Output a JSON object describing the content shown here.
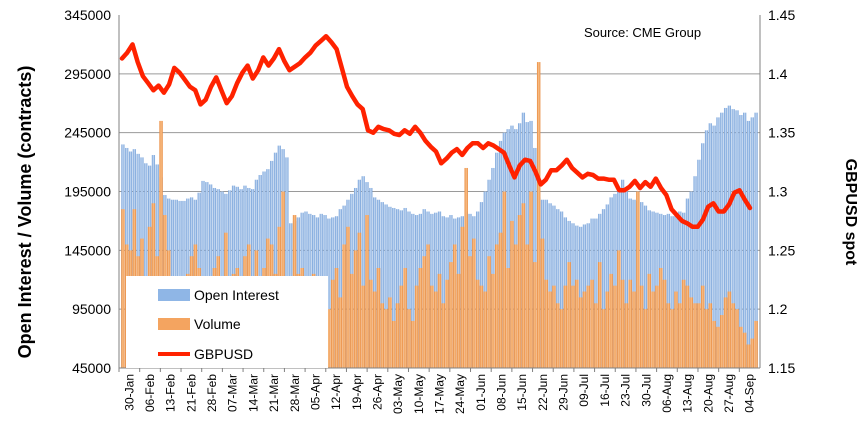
{
  "chart_data": {
    "type": "bar",
    "source_note": "Source: CME Group",
    "y_left_label": "Open Interest / Volume (contracts)",
    "y_right_label": "GBPUSD spot",
    "y_left_ticks": [
      "345000",
      "295000",
      "245000",
      "195000",
      "145000",
      "95000",
      "45000"
    ],
    "y_right_ticks": [
      "1.45",
      "1.4",
      "1.35",
      "1.3",
      "1.25",
      "1.2",
      "1.15"
    ],
    "ylim_left": [
      45000,
      345000
    ],
    "ylim_right": [
      1.15,
      1.45
    ],
    "x_labels": [
      "30-Jan",
      "06-Feb",
      "13-Feb",
      "21-Feb",
      "28-Feb",
      "07-Mar",
      "14-Mar",
      "21-Mar",
      "28-Mar",
      "05-Apr",
      "12-Apr",
      "19-Apr",
      "26-Apr",
      "03-May",
      "10-May",
      "17-May",
      "24-May",
      "01-Jun",
      "08-Jun",
      "15-Jun",
      "22-Jun",
      "29-Jun",
      "09-Jul",
      "16-Jul",
      "23-Jul",
      "30-Jul",
      "06-Aug",
      "13-Aug",
      "20-Aug",
      "27-Aug",
      "04-Sep"
    ],
    "legend": [
      {
        "name": "Open Interest",
        "color": "#8fb6e6"
      },
      {
        "name": "Volume",
        "color": "#f4a460"
      },
      {
        "name": "GBPUSD",
        "color": "#ff2200"
      }
    ],
    "series": [
      {
        "name": "Open Interest",
        "axis": "left",
        "color": "#8fb6e6",
        "values": [
          235000,
          232000,
          229000,
          231000,
          227000,
          224000,
          219000,
          217000,
          226000,
          218000,
          207000,
          192000,
          189000,
          188000,
          188000,
          187000,
          187000,
          189000,
          190000,
          188000,
          194000,
          204000,
          203000,
          201000,
          198000,
          197000,
          195000,
          193000,
          196000,
          200000,
          199000,
          197000,
          200000,
          198000,
          197000,
          205000,
          209000,
          212000,
          214000,
          221000,
          228000,
          234000,
          231000,
          224000,
          168000,
          170000,
          173000,
          177000,
          178000,
          176000,
          175000,
          173000,
          176000,
          175000,
          172000,
          173000,
          174000,
          180000,
          183000,
          188000,
          193000,
          198000,
          205000,
          208000,
          203000,
          198000,
          190000,
          188000,
          186000,
          184000,
          182000,
          181000,
          180000,
          179000,
          181000,
          178000,
          176000,
          175000,
          176000,
          180000,
          178000,
          176000,
          177000,
          178000,
          174000,
          173000,
          175000,
          172000,
          173000,
          174000,
          178000,
          176000,
          174000,
          178000,
          186000,
          195000,
          205000,
          215000,
          228000,
          238000,
          245000,
          248000,
          251000,
          248000,
          253000,
          262000,
          254000,
          255000,
          232000,
          190000,
          188000,
          188000,
          185000,
          183000,
          180000,
          178000,
          173000,
          170000,
          168000,
          166000,
          165000,
          167000,
          168000,
          172000,
          172000,
          176000,
          180000,
          184000,
          190000,
          193000,
          198000,
          205000,
          195000,
          189000,
          188000,
          187000,
          186000,
          183000,
          179000,
          178000,
          177000,
          176000,
          175000,
          176000,
          174000,
          175000,
          178000,
          177000,
          189000,
          195000,
          208000,
          222000,
          236000,
          247000,
          253000,
          251000,
          258000,
          262000,
          266000,
          268000,
          265000,
          264000,
          260000,
          262000,
          255000,
          258000,
          262000
        ]
      },
      {
        "name": "Volume",
        "axis": "left",
        "color": "#f4a460",
        "values": [
          180000,
          150000,
          145000,
          180000,
          140000,
          155000,
          115000,
          165000,
          185000,
          140000,
          255000,
          175000,
          145000,
          120000,
          95000,
          110000,
          105000,
          125000,
          140000,
          150000,
          130000,
          115000,
          100000,
          95000,
          130000,
          140000,
          110000,
          160000,
          105000,
          125000,
          130000,
          110000,
          140000,
          150000,
          120000,
          145000,
          110000,
          130000,
          155000,
          150000,
          125000,
          165000,
          195000,
          120000,
          95000,
          175000,
          125000,
          130000,
          115000,
          120000,
          125000,
          110000,
          115000,
          100000,
          95000,
          120000,
          130000,
          105000,
          150000,
          165000,
          125000,
          145000,
          160000,
          115000,
          175000,
          120000,
          110000,
          130000,
          100000,
          95000,
          105000,
          85000,
          100000,
          115000,
          130000,
          95000,
          85000,
          115000,
          130000,
          140000,
          150000,
          115000,
          110000,
          125000,
          100000,
          120000,
          135000,
          150000,
          125000,
          165000,
          215000,
          140000,
          155000,
          120000,
          115000,
          110000,
          140000,
          125000,
          150000,
          160000,
          195000,
          130000,
          170000,
          150000,
          175000,
          185000,
          150000,
          195000,
          135000,
          305000,
          155000,
          120000,
          110000,
          115000,
          100000,
          95000,
          115000,
          135000,
          115000,
          120000,
          105000,
          110000,
          115000,
          120000,
          100000,
          135000,
          95000,
          110000,
          125000,
          115000,
          145000,
          120000,
          100000,
          120000,
          110000,
          195000,
          115000,
          95000,
          125000,
          110000,
          115000,
          130000,
          120000,
          100000,
          95000,
          110000,
          100000,
          120000,
          115000,
          105000,
          100000,
          100000,
          115000,
          95000,
          100000,
          85000,
          80000,
          90000,
          105000,
          110000,
          100000,
          95000,
          80000,
          75000,
          65000,
          70000,
          85000,
          105000,
          115000,
          175000
        ]
      },
      {
        "name": "GBPUSD",
        "axis": "right",
        "color": "#ff2200",
        "values": [
          1.413,
          1.418,
          1.425,
          1.41,
          1.398,
          1.392,
          1.386,
          1.39,
          1.384,
          1.391,
          1.405,
          1.401,
          1.395,
          1.389,
          1.386,
          1.374,
          1.378,
          1.389,
          1.397,
          1.386,
          1.375,
          1.381,
          1.392,
          1.401,
          1.407,
          1.396,
          1.403,
          1.414,
          1.407,
          1.413,
          1.421,
          1.411,
          1.403,
          1.406,
          1.409,
          1.414,
          1.418,
          1.424,
          1.428,
          1.432,
          1.427,
          1.421,
          1.405,
          1.389,
          1.381,
          1.374,
          1.37,
          1.352,
          1.35,
          1.355,
          1.353,
          1.352,
          1.349,
          1.348,
          1.352,
          1.349,
          1.355,
          1.35,
          1.343,
          1.338,
          1.334,
          1.324,
          1.328,
          1.333,
          1.336,
          1.331,
          1.337,
          1.341,
          1.341,
          1.337,
          1.341,
          1.339,
          1.336,
          1.333,
          1.322,
          1.312,
          1.322,
          1.327,
          1.326,
          1.317,
          1.306,
          1.31,
          1.318,
          1.318,
          1.322,
          1.327,
          1.32,
          1.316,
          1.312,
          1.315,
          1.314,
          1.311,
          1.311,
          1.31,
          1.31,
          1.301,
          1.301,
          1.304,
          1.309,
          1.303,
          1.308,
          1.304,
          1.311,
          1.303,
          1.297,
          1.285,
          1.28,
          1.275,
          1.273,
          1.27,
          1.27,
          1.276,
          1.287,
          1.29,
          1.283,
          1.283,
          1.289,
          1.299,
          1.301,
          1.293,
          1.286
        ]
      }
    ]
  }
}
